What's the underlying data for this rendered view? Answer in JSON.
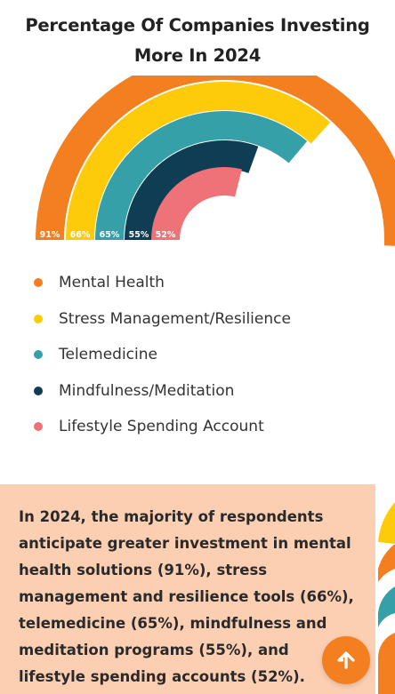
{
  "chart_data": {
    "type": "radial-bar",
    "title": "Percentage Of Companies Investing More In 2024",
    "unit": "%",
    "categories": [
      "Mental Health",
      "Stress Management/Resilience",
      "Telemedicine",
      "Mindfulness/Meditation",
      "Lifestyle Spending Account"
    ],
    "values": [
      91,
      66,
      65,
      55,
      52
    ],
    "value_labels": [
      "91%",
      "66%",
      "65%",
      "55%",
      "52%"
    ],
    "colors": [
      "#f47f20",
      "#fecb0a",
      "#35a0a8",
      "#0f3d53",
      "#ef7278"
    ],
    "legend_position": "bottom"
  },
  "summary": "In 2024, the majority of respondents anticipate greater investment in mental health solutions (91%), stress management and resilience tools (66%), telemedicine (65%), mindfulness and meditation programs (55%), and lifestyle spending accounts (52%).",
  "icons": {
    "back_to_top": "arrow-up-icon"
  }
}
